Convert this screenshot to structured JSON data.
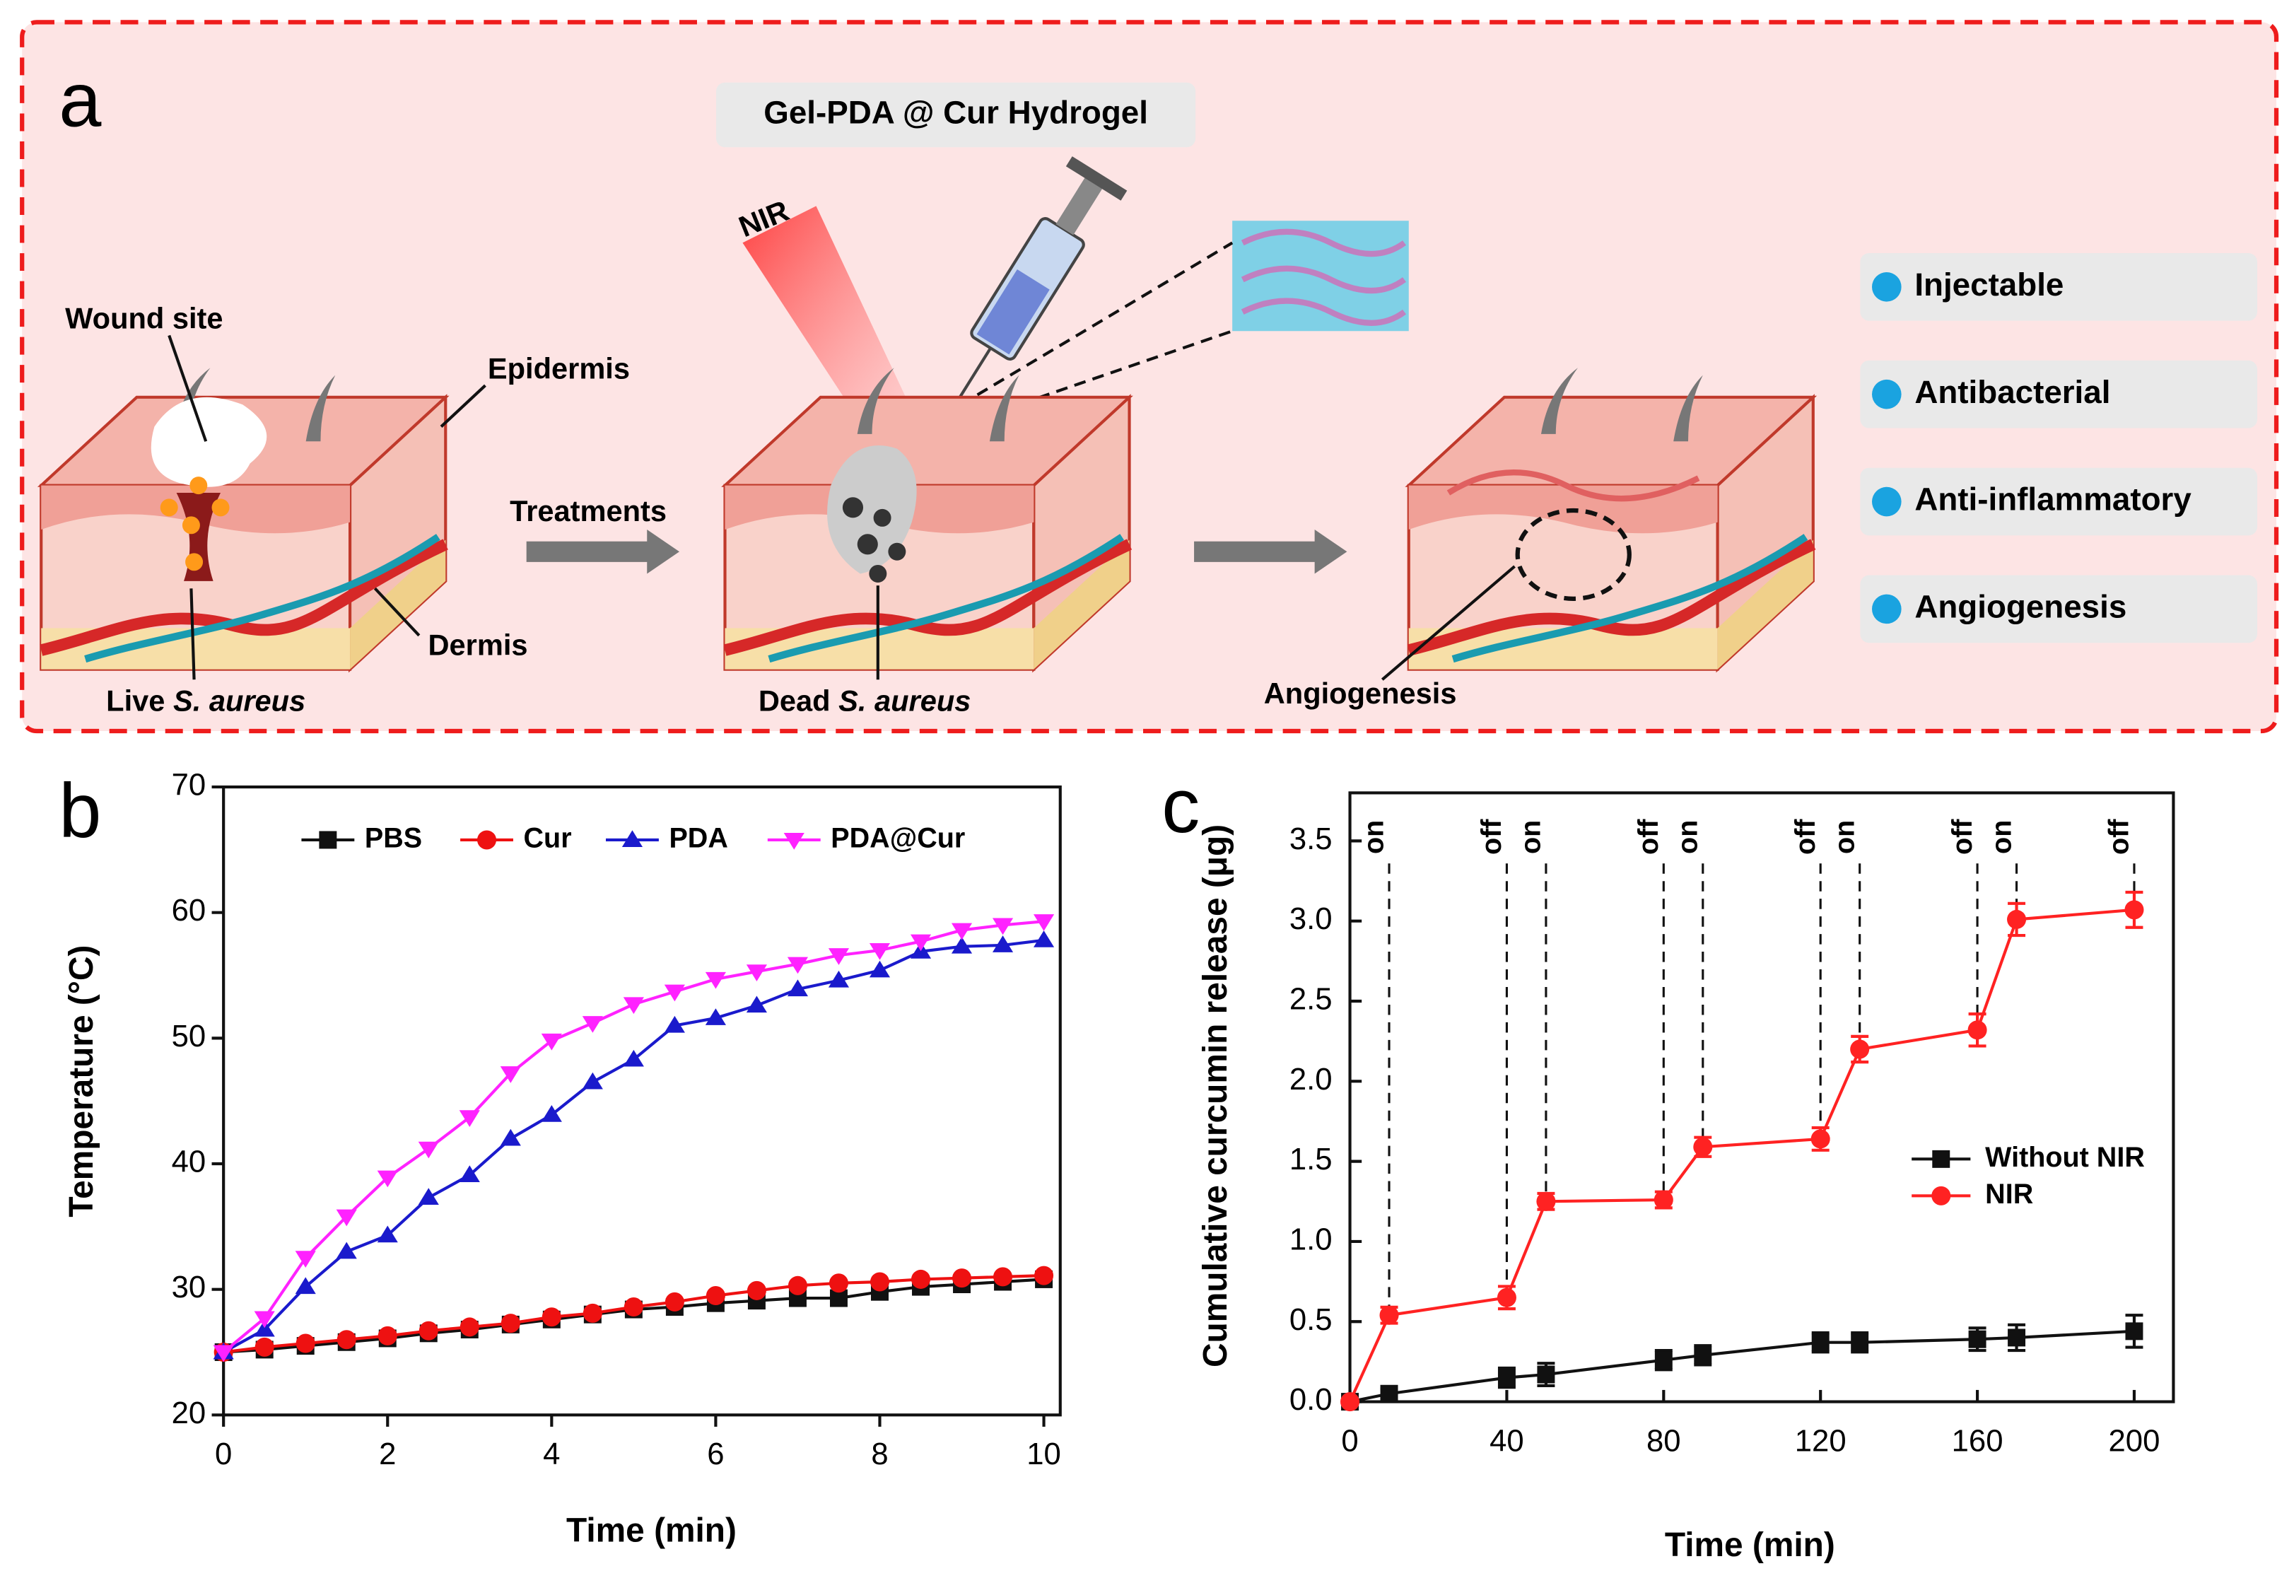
{
  "panel_a": {
    "panel_label": "a",
    "hydrogel_label": "Gel-PDA @ Cur Hydrogel",
    "nir_label": "NIR",
    "wound_label": "Wound site",
    "epidermis_label": "Epidermis",
    "treatments_label": "Treatments",
    "dermis_label": "Dermis",
    "live_label": "Live",
    "live_species": "S. aureus",
    "dead_label": "Dead",
    "dead_species": "S. aureus",
    "angiogenesis_label": "Angiogenesis",
    "features": [
      "Injectable",
      "Antibacterial",
      "Anti-inflammatory",
      "Angiogenesis"
    ]
  },
  "chart_data": [
    {
      "type": "line",
      "panel_label": "b",
      "x_label": "Time (min)",
      "y_label": "Temperature (°C)",
      "x": [
        0,
        0.5,
        1,
        1.5,
        2,
        2.5,
        3,
        3.5,
        4,
        4.5,
        5,
        5.5,
        6,
        6.5,
        7,
        7.5,
        8,
        8.5,
        9,
        9.5,
        10
      ],
      "series": [
        {
          "name": "PBS",
          "color": "#111111",
          "marker": "square",
          "values": [
            25,
            25.2,
            25.5,
            25.8,
            26.1,
            26.5,
            26.8,
            27.2,
            27.6,
            28,
            28.4,
            28.6,
            28.9,
            29.1,
            29.3,
            29.3,
            29.8,
            30.2,
            30.4,
            30.6,
            30.8
          ]
        },
        {
          "name": "Cur",
          "color": "#ee1111",
          "marker": "circle",
          "values": [
            25,
            25.4,
            25.7,
            26,
            26.3,
            26.7,
            27,
            27.3,
            27.8,
            28.1,
            28.6,
            29,
            29.5,
            29.9,
            30.3,
            30.5,
            30.6,
            30.8,
            30.9,
            31,
            31.1
          ]
        },
        {
          "name": "PDA",
          "color": "#1a1acc",
          "marker": "triangle-up",
          "values": [
            25,
            26.8,
            30.2,
            33,
            34.3,
            37.3,
            39.1,
            42,
            43.9,
            46.5,
            48.3,
            51,
            51.6,
            52.6,
            53.9,
            54.6,
            55.4,
            56.9,
            57.3,
            57.4,
            57.8
          ]
        },
        {
          "name": "PDA@Cur",
          "color": "#ff22ff",
          "marker": "triangle-down",
          "values": [
            25,
            27.7,
            32.5,
            35.8,
            38.9,
            41.2,
            43.7,
            47.2,
            49.8,
            51.2,
            52.7,
            53.7,
            54.7,
            55.3,
            55.9,
            56.6,
            57,
            57.7,
            58.6,
            59,
            59.3
          ]
        }
      ],
      "xlim": [
        0,
        10.2
      ],
      "xticks": [
        0,
        2,
        4,
        6,
        8,
        10
      ],
      "ylim": [
        20,
        70
      ],
      "yticks": [
        20,
        30,
        40,
        50,
        60,
        70
      ],
      "legend": "top"
    },
    {
      "type": "line",
      "panel_label": "c",
      "x_label": "Time (min)",
      "y_label": "Cumulative curcumin release (μg)",
      "x": [
        0,
        10,
        40,
        50,
        80,
        90,
        120,
        130,
        160,
        170,
        200
      ],
      "series": [
        {
          "name": "Without NIR",
          "color": "#111111",
          "marker": "square",
          "values": [
            0,
            0.05,
            0.15,
            0.17,
            0.26,
            0.29,
            0.37,
            0.37,
            0.39,
            0.4,
            0.44
          ],
          "errors": [
            0,
            0.03,
            0.06,
            0.07,
            0.06,
            0.06,
            0.06,
            0.06,
            0.07,
            0.08,
            0.1
          ]
        },
        {
          "name": "NIR",
          "color": "#ff2222",
          "marker": "circle",
          "values": [
            0,
            0.54,
            0.65,
            1.25,
            1.26,
            1.59,
            1.64,
            2.2,
            2.32,
            3.01,
            3.07
          ],
          "errors": [
            0,
            0.05,
            0.07,
            0.05,
            0.05,
            0.06,
            0.07,
            0.08,
            0.1,
            0.1,
            0.11
          ]
        }
      ],
      "switch_lines": [
        {
          "x": 10,
          "label": "on"
        },
        {
          "x": 40,
          "label": "off"
        },
        {
          "x": 50,
          "label": "on"
        },
        {
          "x": 80,
          "label": "off"
        },
        {
          "x": 90,
          "label": "on"
        },
        {
          "x": 120,
          "label": "off"
        },
        {
          "x": 130,
          "label": "on"
        },
        {
          "x": 160,
          "label": "off"
        },
        {
          "x": 170,
          "label": "on"
        },
        {
          "x": 200,
          "label": "off"
        }
      ],
      "xlim": [
        0,
        210
      ],
      "xticks": [
        0,
        40,
        80,
        120,
        160,
        200
      ],
      "ylim": [
        0,
        3.8
      ],
      "yticks": [
        {
          "value": 0,
          "label": "0.0"
        },
        0.5,
        {
          "value": 1,
          "label": "1.0"
        },
        1.5,
        {
          "value": 2,
          "label": "2.0"
        },
        2.5,
        {
          "value": 3,
          "label": "3.0"
        },
        3.5
      ],
      "legend": "right"
    }
  ]
}
